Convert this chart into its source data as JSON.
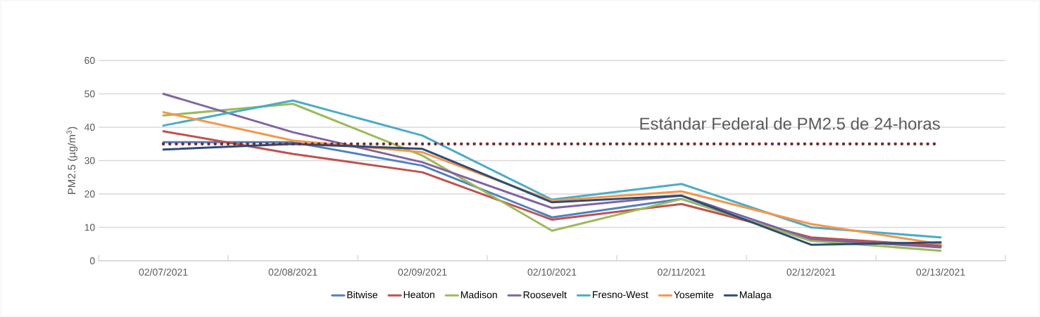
{
  "chart_data": {
    "type": "line",
    "ylabel": "PM2.5 (µg/m$^{3}$)",
    "categories": [
      "02/07/2021",
      "02/08/2021",
      "02/09/2021",
      "02/10/2021",
      "02/11/2021",
      "02/12/2021",
      "02/13/2021"
    ],
    "series": [
      {
        "name": "Bitwise",
        "color": "#4f81bd",
        "values": [
          35.5,
          35.5,
          28.5,
          13,
          18.5,
          6,
          4.5
        ]
      },
      {
        "name": "Heaton",
        "color": "#c0504d",
        "values": [
          38.8,
          32,
          26.5,
          12.3,
          17,
          7,
          4.5
        ]
      },
      {
        "name": "Madison",
        "color": "#9bbb59",
        "values": [
          43.5,
          47,
          31.5,
          9,
          18.5,
          6,
          3
        ]
      },
      {
        "name": "Roosevelt",
        "color": "#8064a2",
        "values": [
          50,
          38.5,
          29.5,
          15.8,
          19.5,
          6.5,
          4
        ]
      },
      {
        "name": "Fresno-West",
        "color": "#4bacc6",
        "values": [
          40.5,
          48,
          37.5,
          18.3,
          23,
          10,
          7
        ]
      },
      {
        "name": "Yosemite",
        "color": "#f79646",
        "values": [
          44.5,
          36,
          32.5,
          18,
          20.8,
          11,
          5
        ]
      },
      {
        "name": "Malaga",
        "color": "#2c4d75",
        "values": [
          33.3,
          35,
          33.5,
          17.5,
          19.5,
          4.8,
          5.5
        ]
      }
    ],
    "ylim": [
      0,
      60
    ],
    "yticks": [
      0,
      10,
      20,
      30,
      40,
      50,
      60
    ],
    "grid": "y",
    "legend": "bottom",
    "line_style": "solid",
    "ref_lines": [
      {
        "axis": "y",
        "value": 35,
        "label": "Estándar Federal de PM2.5 de 24-horas",
        "color": "#7b2a2a",
        "line_style": "dotted"
      }
    ]
  }
}
